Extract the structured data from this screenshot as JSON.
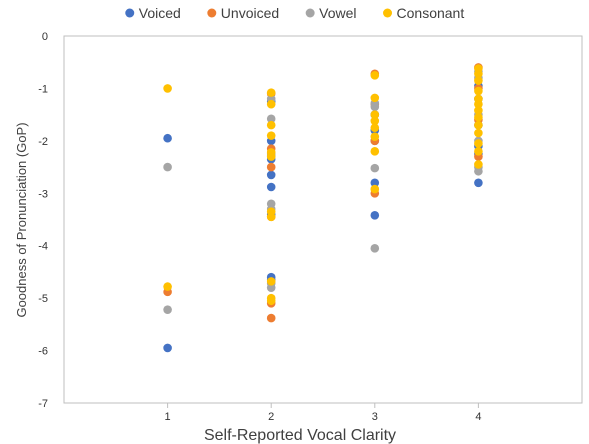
{
  "chart_data": {
    "type": "scatter",
    "title": "",
    "xlabel": "Self-Reported Vocal Clarity",
    "ylabel": "Goodness of Pronunciation (GoP)",
    "xlim": [
      0,
      5
    ],
    "ylim": [
      -7,
      0
    ],
    "xticks": [
      1,
      2,
      3,
      4
    ],
    "yticks": [
      0,
      -1,
      -2,
      -3,
      -4,
      -5,
      -6,
      -7
    ],
    "grid": false,
    "legend_position": "top",
    "series": [
      {
        "name": "Voiced",
        "color": "#4472C4",
        "points": [
          [
            1,
            -1.95
          ],
          [
            1,
            -5.95
          ],
          [
            2,
            -1.25
          ],
          [
            2,
            -2.0
          ],
          [
            2,
            -2.35
          ],
          [
            2,
            -2.65
          ],
          [
            2,
            -2.88
          ],
          [
            2,
            -3.4
          ],
          [
            2,
            -4.6
          ],
          [
            2,
            -4.65
          ],
          [
            3,
            -1.5
          ],
          [
            3,
            -1.8
          ],
          [
            3,
            -2.0
          ],
          [
            3,
            -2.8
          ],
          [
            3,
            -3.42
          ],
          [
            4,
            -0.95
          ],
          [
            4,
            -1.2
          ],
          [
            4,
            -1.7
          ],
          [
            4,
            -2.1
          ],
          [
            4,
            -2.25
          ],
          [
            4,
            -2.8
          ]
        ]
      },
      {
        "name": "Unvoiced",
        "color": "#ED7D31",
        "points": [
          [
            1,
            -4.88
          ],
          [
            2,
            -1.1
          ],
          [
            2,
            -2.15
          ],
          [
            2,
            -2.5
          ],
          [
            2,
            -3.45
          ],
          [
            2,
            -5.1
          ],
          [
            2,
            -5.38
          ],
          [
            3,
            -0.72
          ],
          [
            3,
            -1.3
          ],
          [
            3,
            -2.0
          ],
          [
            3,
            -3.0
          ],
          [
            4,
            -0.6
          ],
          [
            4,
            -1.0
          ],
          [
            4,
            -1.6
          ],
          [
            4,
            -2.3
          ]
        ]
      },
      {
        "name": "Vowel",
        "color": "#A5A5A5",
        "points": [
          [
            1,
            -2.5
          ],
          [
            1,
            -5.22
          ],
          [
            2,
            -1.2
          ],
          [
            2,
            -1.58
          ],
          [
            2,
            -2.25
          ],
          [
            2,
            -2.28
          ],
          [
            2,
            -3.2
          ],
          [
            2,
            -3.3
          ],
          [
            2,
            -4.72
          ],
          [
            2,
            -4.8
          ],
          [
            3,
            -1.28
          ],
          [
            3,
            -1.35
          ],
          [
            3,
            -2.52
          ],
          [
            3,
            -4.05
          ],
          [
            4,
            -0.68
          ],
          [
            4,
            -0.8
          ],
          [
            4,
            -1.5
          ],
          [
            4,
            -2.0
          ],
          [
            4,
            -2.5
          ],
          [
            4,
            -2.58
          ]
        ]
      },
      {
        "name": "Consonant",
        "color": "#FFC000",
        "points": [
          [
            1,
            -1.0
          ],
          [
            1,
            -4.78
          ],
          [
            2,
            -1.08
          ],
          [
            2,
            -1.3
          ],
          [
            2,
            -1.7
          ],
          [
            2,
            -1.9
          ],
          [
            2,
            -2.22
          ],
          [
            2,
            -2.3
          ],
          [
            2,
            -3.35
          ],
          [
            2,
            -3.45
          ],
          [
            2,
            -4.68
          ],
          [
            2,
            -5.0
          ],
          [
            2,
            -5.05
          ],
          [
            3,
            -0.75
          ],
          [
            3,
            -1.18
          ],
          [
            3,
            -1.5
          ],
          [
            3,
            -1.62
          ],
          [
            3,
            -1.75
          ],
          [
            3,
            -1.92
          ],
          [
            3,
            -2.2
          ],
          [
            3,
            -2.92
          ],
          [
            4,
            -0.62
          ],
          [
            4,
            -0.72
          ],
          [
            4,
            -0.85
          ],
          [
            4,
            -1.05
          ],
          [
            4,
            -1.2
          ],
          [
            4,
            -1.3
          ],
          [
            4,
            -1.42
          ],
          [
            4,
            -1.55
          ],
          [
            4,
            -1.7
          ],
          [
            4,
            -1.85
          ],
          [
            4,
            -2.05
          ],
          [
            4,
            -2.2
          ],
          [
            4,
            -2.45
          ]
        ]
      }
    ]
  }
}
